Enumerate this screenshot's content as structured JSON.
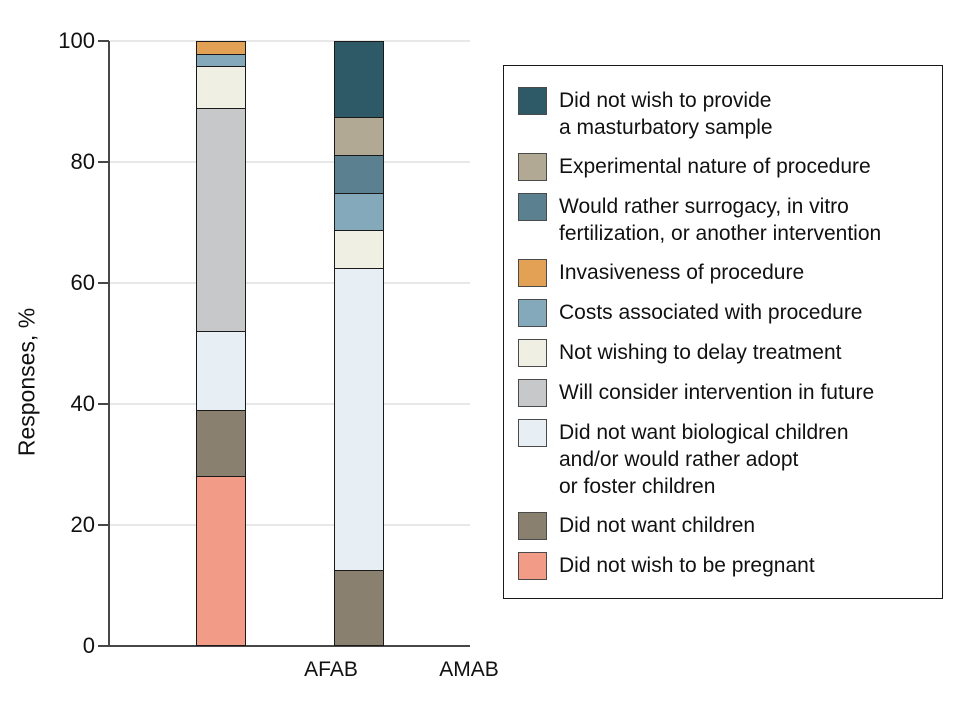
{
  "chart_data": {
    "type": "bar",
    "subtype": "stacked-percentage",
    "title": "",
    "xlabel": "",
    "ylabel": "Responses, %",
    "ylim": [
      0,
      100
    ],
    "yticks": [
      0,
      20,
      40,
      60,
      80,
      100
    ],
    "grid": true,
    "legend_position": "right",
    "categories": [
      "AFAB",
      "AMAB"
    ],
    "series": [
      {
        "name": "Did not wish to provide a masturbatory sample",
        "lines": [
          "Did not wish to provide",
          "a masturbatory sample"
        ],
        "color": "#2E5966",
        "values": [
          0,
          12.5
        ]
      },
      {
        "name": "Experimental nature of procedure",
        "lines": [
          "Experimental nature of procedure"
        ],
        "color": "#B2A995",
        "values": [
          0,
          6.25
        ]
      },
      {
        "name": "Would rather surrogacy, in vitro fertilization, or another intervention",
        "lines": [
          "Would rather surrogacy, in vitro",
          "fertilization, or another intervention"
        ],
        "color": "#5B8191",
        "values": [
          0,
          6.25
        ]
      },
      {
        "name": "Invasiveness of procedure",
        "lines": [
          "Invasiveness of procedure"
        ],
        "color": "#E2A155",
        "values": [
          2,
          0
        ]
      },
      {
        "name": "Costs associated with procedure",
        "lines": [
          "Costs associated with procedure"
        ],
        "color": "#83A9BA",
        "values": [
          2,
          6.25
        ]
      },
      {
        "name": "Not wishing to delay treatment",
        "lines": [
          "Not wishing to delay treatment"
        ],
        "color": "#F0EFE4",
        "values": [
          7,
          6.25
        ]
      },
      {
        "name": "Will consider intervention in future",
        "lines": [
          "Will consider intervention in future"
        ],
        "color": "#C7C8CA",
        "values": [
          37,
          0
        ]
      },
      {
        "name": "Did not want biological children and/or would rather adopt or foster children",
        "lines": [
          "Did not want biological children",
          "and/or would rather adopt",
          "or foster children"
        ],
        "color": "#E7EFF4",
        "values": [
          13,
          50
        ]
      },
      {
        "name": "Did not want children",
        "lines": [
          "Did not want children"
        ],
        "color": "#8A8070",
        "values": [
          11,
          12.5
        ]
      },
      {
        "name": "Did not wish to be pregnant",
        "lines": [
          "Did not wish to be pregnant"
        ],
        "color": "#F29B86",
        "values": [
          28,
          0
        ]
      }
    ],
    "colors": {
      "axis": "#474747",
      "gridline": "#e8e8e8",
      "bar_outline": "#1a1a1a",
      "text": "#111111"
    }
  }
}
